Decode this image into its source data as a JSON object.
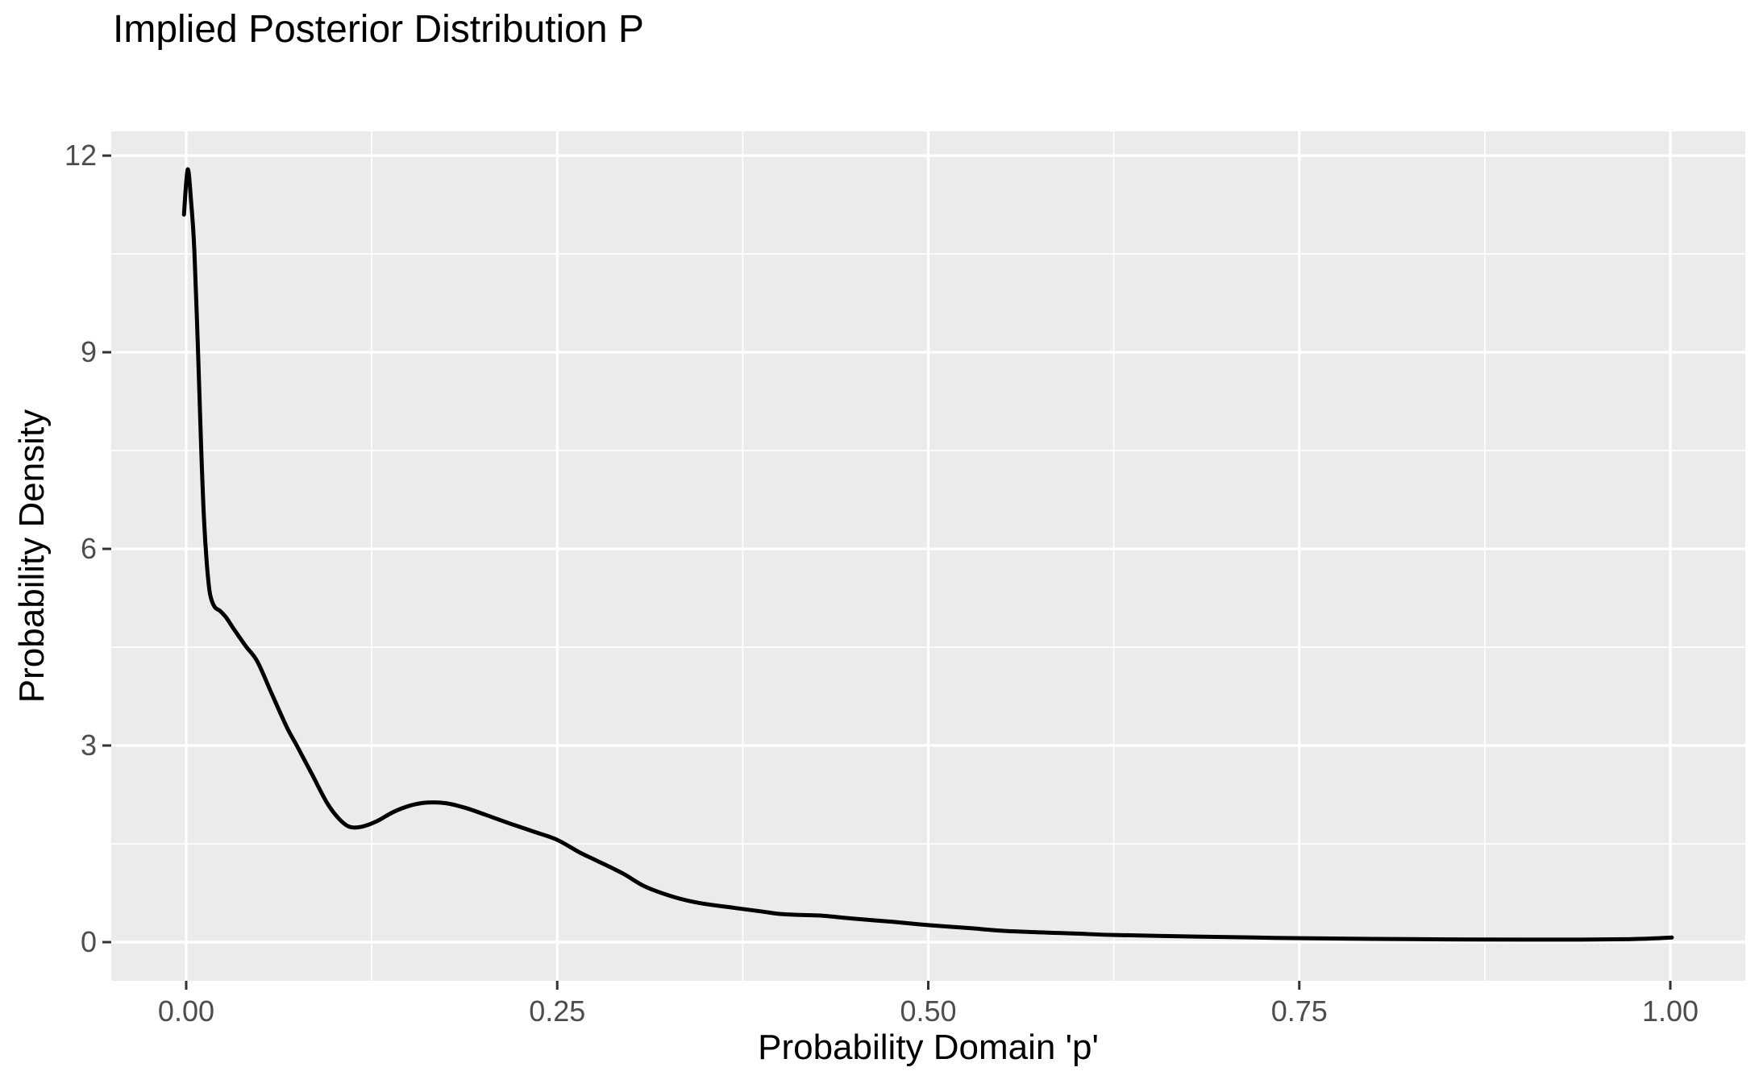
{
  "chart_data": {
    "type": "line",
    "subtype": "kernel-density",
    "title": "Implied Posterior Distribution P",
    "xlabel": "Probability Domain 'p'",
    "ylabel": "Probability Density",
    "grid": "on",
    "legend": "none",
    "x_ticks": {
      "values": [
        0,
        0.25,
        0.5,
        0.75,
        1.0
      ],
      "labels": [
        "0.00",
        "0.25",
        "0.50",
        "0.75",
        "1.00"
      ]
    },
    "y_ticks": {
      "values": [
        0,
        3,
        6,
        9,
        12
      ],
      "labels": [
        "0",
        "3",
        "6",
        "9",
        "12"
      ]
    },
    "x_minor_ticks": [
      0.125,
      0.375,
      0.625,
      0.875
    ],
    "y_minor_ticks": [
      1.5,
      4.5,
      7.5,
      10.5
    ],
    "xlim": [
      -0.0505,
      1.0505
    ],
    "ylim": [
      -0.59,
      12.37
    ],
    "theme": {
      "panel_bg": "#EBEBEB",
      "grid_color": "#FFFFFF",
      "curve_color": "#000000",
      "tick_label_color": "#4D4D4D",
      "tick_mark_color": "#333333",
      "axis_title_color": "#000000",
      "title_color": "#000000"
    },
    "series": [
      {
        "name": "posterior_density",
        "points": [
          [
            -0.0015,
            11.1
          ],
          [
            0.001,
            11.79
          ],
          [
            0.0035,
            11.25
          ],
          [
            0.0055,
            10.55
          ],
          [
            0.008,
            9.0
          ],
          [
            0.01,
            7.6
          ],
          [
            0.012,
            6.45
          ],
          [
            0.014,
            5.75
          ],
          [
            0.016,
            5.32
          ],
          [
            0.019,
            5.12
          ],
          [
            0.023,
            5.05
          ],
          [
            0.027,
            4.95
          ],
          [
            0.032,
            4.78
          ],
          [
            0.04,
            4.52
          ],
          [
            0.048,
            4.28
          ],
          [
            0.058,
            3.77
          ],
          [
            0.068,
            3.27
          ],
          [
            0.0745,
            3.0
          ],
          [
            0.085,
            2.55
          ],
          [
            0.095,
            2.12
          ],
          [
            0.103,
            1.88
          ],
          [
            0.11,
            1.76
          ],
          [
            0.118,
            1.76
          ],
          [
            0.128,
            1.84
          ],
          [
            0.14,
            1.99
          ],
          [
            0.152,
            2.09
          ],
          [
            0.163,
            2.13
          ],
          [
            0.175,
            2.12
          ],
          [
            0.188,
            2.05
          ],
          [
            0.202,
            1.94
          ],
          [
            0.218,
            1.81
          ],
          [
            0.235,
            1.68
          ],
          [
            0.25,
            1.56
          ],
          [
            0.265,
            1.37
          ],
          [
            0.276,
            1.25
          ],
          [
            0.294,
            1.05
          ],
          [
            0.309,
            0.85
          ],
          [
            0.327,
            0.7
          ],
          [
            0.345,
            0.6
          ],
          [
            0.367,
            0.53
          ],
          [
            0.387,
            0.47
          ],
          [
            0.4,
            0.43
          ],
          [
            0.414,
            0.415
          ],
          [
            0.428,
            0.405
          ],
          [
            0.449,
            0.36
          ],
          [
            0.476,
            0.31
          ],
          [
            0.5,
            0.26
          ],
          [
            0.53,
            0.21
          ],
          [
            0.553,
            0.17
          ],
          [
            0.6,
            0.13
          ],
          [
            0.625,
            0.11
          ],
          [
            0.68,
            0.085
          ],
          [
            0.72,
            0.07
          ],
          [
            0.751,
            0.06
          ],
          [
            0.8,
            0.05
          ],
          [
            0.85,
            0.042
          ],
          [
            0.9,
            0.038
          ],
          [
            0.94,
            0.038
          ],
          [
            0.97,
            0.045
          ],
          [
            0.99,
            0.058
          ],
          [
            1.001,
            0.07
          ]
        ]
      }
    ]
  }
}
